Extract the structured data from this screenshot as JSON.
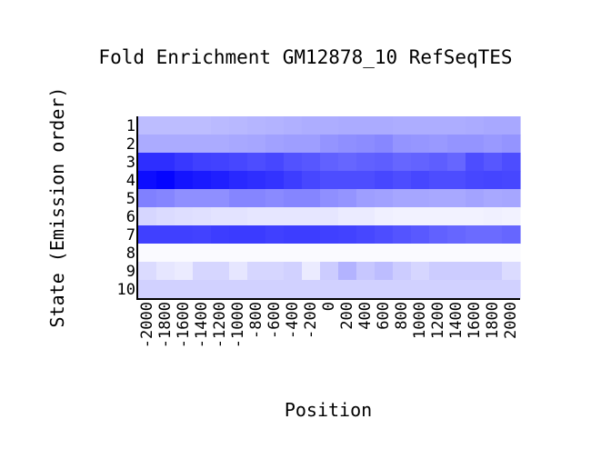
{
  "chart_data": {
    "type": "heatmap",
    "title": "Fold Enrichment GM12878_10 RefSeqTES",
    "xlabel": "Position",
    "ylabel": "State (Emission order)",
    "x_tick_labels": [
      "-2000",
      "-1800",
      "-1600",
      "-1400",
      "-1200",
      "-1000",
      "-800",
      "-600",
      "-400",
      "-200",
      "0",
      "200",
      "400",
      "600",
      "800",
      "1000",
      "1200",
      "1400",
      "1600",
      "1800",
      "2000"
    ],
    "y_tick_labels": [
      "1",
      "2",
      "3",
      "4",
      "5",
      "6",
      "7",
      "8",
      "9",
      "10"
    ],
    "color_low": "#ffffff",
    "color_high": "#0000ff",
    "values": [
      [
        0.26,
        0.26,
        0.26,
        0.26,
        0.27,
        0.28,
        0.29,
        0.3,
        0.31,
        0.32,
        0.32,
        0.33,
        0.33,
        0.33,
        0.32,
        0.32,
        0.32,
        0.32,
        0.33,
        0.34,
        0.34
      ],
      [
        0.33,
        0.33,
        0.33,
        0.33,
        0.33,
        0.34,
        0.35,
        0.37,
        0.38,
        0.38,
        0.42,
        0.44,
        0.45,
        0.47,
        0.42,
        0.41,
        0.4,
        0.42,
        0.42,
        0.4,
        0.42
      ],
      [
        0.82,
        0.82,
        0.78,
        0.75,
        0.74,
        0.72,
        0.7,
        0.72,
        0.68,
        0.66,
        0.62,
        0.6,
        0.62,
        0.63,
        0.6,
        0.61,
        0.63,
        0.6,
        0.7,
        0.66,
        0.7
      ],
      [
        0.95,
        0.98,
        0.92,
        0.9,
        0.88,
        0.84,
        0.82,
        0.8,
        0.76,
        0.72,
        0.7,
        0.7,
        0.7,
        0.72,
        0.7,
        0.72,
        0.7,
        0.7,
        0.72,
        0.73,
        0.72
      ],
      [
        0.5,
        0.48,
        0.44,
        0.44,
        0.44,
        0.48,
        0.48,
        0.46,
        0.48,
        0.48,
        0.44,
        0.42,
        0.38,
        0.37,
        0.35,
        0.35,
        0.34,
        0.34,
        0.36,
        0.34,
        0.35
      ],
      [
        0.16,
        0.14,
        0.13,
        0.12,
        0.11,
        0.11,
        0.1,
        0.1,
        0.1,
        0.1,
        0.1,
        0.08,
        0.08,
        0.06,
        0.05,
        0.05,
        0.05,
        0.05,
        0.05,
        0.06,
        0.05
      ],
      [
        0.75,
        0.75,
        0.75,
        0.74,
        0.76,
        0.77,
        0.77,
        0.75,
        0.76,
        0.76,
        0.75,
        0.74,
        0.72,
        0.7,
        0.67,
        0.65,
        0.62,
        0.6,
        0.58,
        0.58,
        0.6
      ],
      [
        0.02,
        0.02,
        0.02,
        0.02,
        0.02,
        0.02,
        0.02,
        0.02,
        0.02,
        0.02,
        0.02,
        0.02,
        0.02,
        0.02,
        0.02,
        0.02,
        0.02,
        0.02,
        0.02,
        0.02,
        0.02
      ],
      [
        0.14,
        0.1,
        0.08,
        0.16,
        0.16,
        0.1,
        0.16,
        0.16,
        0.18,
        0.08,
        0.2,
        0.3,
        0.22,
        0.26,
        0.2,
        0.16,
        0.2,
        0.2,
        0.2,
        0.2,
        0.14
      ],
      [
        0.18,
        0.18,
        0.18,
        0.18,
        0.18,
        0.18,
        0.18,
        0.18,
        0.18,
        0.18,
        0.18,
        0.18,
        0.18,
        0.18,
        0.18,
        0.18,
        0.18,
        0.18,
        0.18,
        0.18,
        0.18
      ]
    ]
  }
}
